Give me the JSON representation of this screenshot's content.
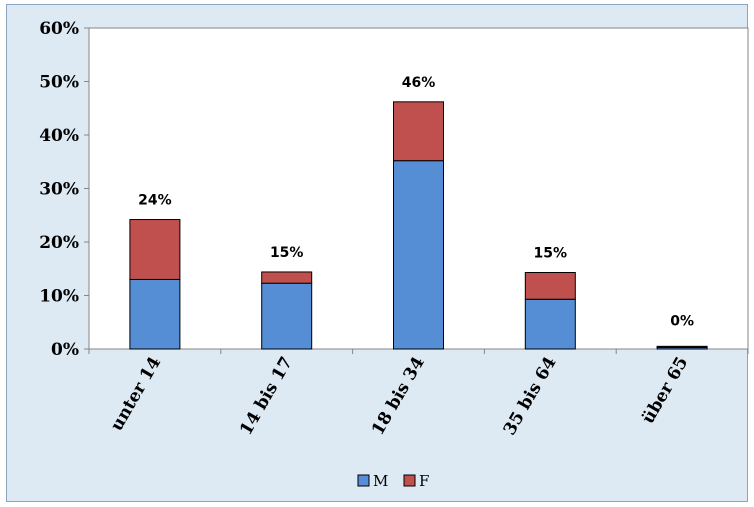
{
  "chart_data": {
    "type": "bar",
    "stacked": true,
    "categories": [
      "unter 14",
      "14 bis 17",
      "18 bis 34",
      "35 bis 64",
      "über 65"
    ],
    "series": [
      {
        "name": "M",
        "values": [
          13,
          12.3,
          35.2,
          9.3,
          0.3
        ],
        "color": "#558ed5"
      },
      {
        "name": "F",
        "values": [
          11.2,
          2.1,
          11,
          5,
          0.2
        ],
        "color": "#c0504d"
      }
    ],
    "totals_labels": [
      "24%",
      "15%",
      "46%",
      "15%",
      "0%"
    ],
    "ylim": [
      0,
      60
    ],
    "yticks": [
      0,
      10,
      20,
      30,
      40,
      50,
      60
    ],
    "ytick_labels": [
      "0%",
      "10%",
      "20%",
      "30%",
      "40%",
      "50%",
      "60%"
    ],
    "legend_position": "bottom",
    "grid": false
  }
}
